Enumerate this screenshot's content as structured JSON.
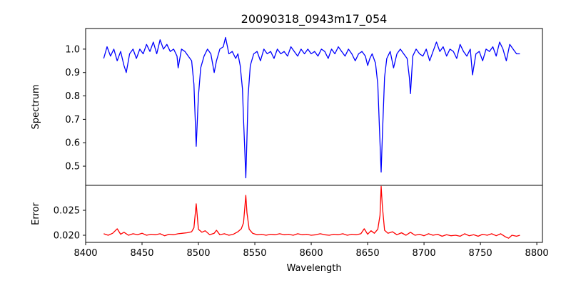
{
  "chart_data": [
    {
      "type": "line",
      "title": "20090318_0943m17_054",
      "xlabel": "",
      "ylabel": "Spectrum",
      "xlim": [
        8400,
        8805
      ],
      "ylim": [
        0.418,
        1.088
      ],
      "yticks": [
        0.5,
        0.6,
        0.7,
        0.8,
        0.9,
        1.0
      ],
      "ytick_labels": [
        "0.5",
        "0.6",
        "0.7",
        "0.8",
        "0.9",
        "1.0"
      ],
      "color": "#0000ff",
      "grid": false,
      "points": [
        [
          8416,
          0.96
        ],
        [
          8419,
          1.01
        ],
        [
          8422,
          0.97
        ],
        [
          8425,
          1.0
        ],
        [
          8428,
          0.95
        ],
        [
          8431,
          0.99
        ],
        [
          8434,
          0.93
        ],
        [
          8436,
          0.9
        ],
        [
          8439,
          0.98
        ],
        [
          8442,
          1.0
        ],
        [
          8445,
          0.96
        ],
        [
          8448,
          1.0
        ],
        [
          8451,
          0.98
        ],
        [
          8454,
          1.02
        ],
        [
          8457,
          0.99
        ],
        [
          8460,
          1.03
        ],
        [
          8463,
          0.98
        ],
        [
          8466,
          1.04
        ],
        [
          8469,
          1.0
        ],
        [
          8472,
          1.02
        ],
        [
          8475,
          0.99
        ],
        [
          8478,
          1.0
        ],
        [
          8481,
          0.97
        ],
        [
          8482,
          0.92
        ],
        [
          8485,
          1.0
        ],
        [
          8488,
          0.99
        ],
        [
          8491,
          0.97
        ],
        [
          8494,
          0.95
        ],
        [
          8496,
          0.85
        ],
        [
          8498,
          0.585
        ],
        [
          8500,
          0.8
        ],
        [
          8502,
          0.92
        ],
        [
          8505,
          0.97
        ],
        [
          8508,
          1.0
        ],
        [
          8511,
          0.98
        ],
        [
          8514,
          0.9
        ],
        [
          8516,
          0.95
        ],
        [
          8519,
          1.0
        ],
        [
          8522,
          1.01
        ],
        [
          8524,
          1.05
        ],
        [
          8527,
          0.98
        ],
        [
          8530,
          0.99
        ],
        [
          8533,
          0.96
        ],
        [
          8535,
          0.98
        ],
        [
          8537,
          0.93
        ],
        [
          8539,
          0.83
        ],
        [
          8540,
          0.7
        ],
        [
          8541,
          0.58
        ],
        [
          8542,
          0.45
        ],
        [
          8543,
          0.62
        ],
        [
          8544,
          0.8
        ],
        [
          8546,
          0.93
        ],
        [
          8549,
          0.98
        ],
        [
          8552,
          0.99
        ],
        [
          8555,
          0.95
        ],
        [
          8558,
          1.0
        ],
        [
          8561,
          0.98
        ],
        [
          8564,
          0.99
        ],
        [
          8567,
          0.96
        ],
        [
          8570,
          1.0
        ],
        [
          8573,
          0.98
        ],
        [
          8576,
          0.99
        ],
        [
          8579,
          0.97
        ],
        [
          8582,
          1.01
        ],
        [
          8585,
          0.99
        ],
        [
          8588,
          0.97
        ],
        [
          8591,
          1.0
        ],
        [
          8594,
          0.98
        ],
        [
          8597,
          1.0
        ],
        [
          8600,
          0.98
        ],
        [
          8603,
          0.99
        ],
        [
          8606,
          0.97
        ],
        [
          8609,
          1.0
        ],
        [
          8612,
          0.99
        ],
        [
          8615,
          0.96
        ],
        [
          8618,
          1.0
        ],
        [
          8621,
          0.98
        ],
        [
          8624,
          1.01
        ],
        [
          8627,
          0.99
        ],
        [
          8630,
          0.97
        ],
        [
          8633,
          1.0
        ],
        [
          8636,
          0.98
        ],
        [
          8639,
          0.95
        ],
        [
          8642,
          0.98
        ],
        [
          8645,
          0.99
        ],
        [
          8648,
          0.97
        ],
        [
          8650,
          0.93
        ],
        [
          8652,
          0.96
        ],
        [
          8654,
          0.98
        ],
        [
          8657,
          0.94
        ],
        [
          8659,
          0.85
        ],
        [
          8661,
          0.6
        ],
        [
          8662,
          0.475
        ],
        [
          8663,
          0.62
        ],
        [
          8665,
          0.88
        ],
        [
          8667,
          0.96
        ],
        [
          8670,
          0.99
        ],
        [
          8673,
          0.92
        ],
        [
          8676,
          0.98
        ],
        [
          8679,
          1.0
        ],
        [
          8682,
          0.98
        ],
        [
          8685,
          0.96
        ],
        [
          8687,
          0.88
        ],
        [
          8688,
          0.81
        ],
        [
          8690,
          0.97
        ],
        [
          8693,
          1.0
        ],
        [
          8696,
          0.98
        ],
        [
          8699,
          0.97
        ],
        [
          8702,
          1.0
        ],
        [
          8705,
          0.95
        ],
        [
          8708,
          0.99
        ],
        [
          8711,
          1.03
        ],
        [
          8714,
          0.99
        ],
        [
          8717,
          1.01
        ],
        [
          8720,
          0.97
        ],
        [
          8723,
          1.0
        ],
        [
          8726,
          0.99
        ],
        [
          8729,
          0.96
        ],
        [
          8732,
          1.02
        ],
        [
          8735,
          0.99
        ],
        [
          8738,
          0.97
        ],
        [
          8741,
          1.0
        ],
        [
          8743,
          0.89
        ],
        [
          8746,
          0.98
        ],
        [
          8749,
          0.99
        ],
        [
          8752,
          0.95
        ],
        [
          8755,
          1.0
        ],
        [
          8758,
          0.99
        ],
        [
          8761,
          1.01
        ],
        [
          8764,
          0.97
        ],
        [
          8767,
          1.03
        ],
        [
          8770,
          1.0
        ],
        [
          8773,
          0.95
        ],
        [
          8776,
          1.02
        ],
        [
          8779,
          1.0
        ],
        [
          8782,
          0.98
        ],
        [
          8785,
          0.98
        ]
      ]
    },
    {
      "type": "line",
      "title": "",
      "xlabel": "Wavelength",
      "ylabel": "Error",
      "xlim": [
        8400,
        8805
      ],
      "ylim": [
        0.01857,
        0.03
      ],
      "xticks": [
        8400,
        8450,
        8500,
        8550,
        8600,
        8650,
        8700,
        8750,
        8800
      ],
      "xtick_labels": [
        "8400",
        "8450",
        "8500",
        "8550",
        "8600",
        "8650",
        "8700",
        "8750",
        "8800"
      ],
      "yticks": [
        0.02,
        0.025
      ],
      "ytick_labels": [
        "0.020",
        "0.025"
      ],
      "color": "#ff0000",
      "grid": false,
      "points": [
        [
          8416,
          0.0203
        ],
        [
          8420,
          0.02
        ],
        [
          8424,
          0.0204
        ],
        [
          8428,
          0.0213
        ],
        [
          8431,
          0.0202
        ],
        [
          8434,
          0.0206
        ],
        [
          8438,
          0.02
        ],
        [
          8442,
          0.0203
        ],
        [
          8446,
          0.0201
        ],
        [
          8450,
          0.0204
        ],
        [
          8454,
          0.02
        ],
        [
          8458,
          0.0202
        ],
        [
          8462,
          0.0201
        ],
        [
          8466,
          0.0203
        ],
        [
          8470,
          0.0199
        ],
        [
          8474,
          0.0202
        ],
        [
          8478,
          0.0201
        ],
        [
          8482,
          0.0203
        ],
        [
          8486,
          0.0204
        ],
        [
          8490,
          0.0205
        ],
        [
          8494,
          0.0207
        ],
        [
          8496,
          0.0215
        ],
        [
          8498,
          0.0263
        ],
        [
          8500,
          0.0212
        ],
        [
          8503,
          0.0206
        ],
        [
          8506,
          0.0209
        ],
        [
          8510,
          0.0201
        ],
        [
          8514,
          0.0204
        ],
        [
          8516,
          0.021
        ],
        [
          8519,
          0.0201
        ],
        [
          8523,
          0.0203
        ],
        [
          8527,
          0.02
        ],
        [
          8531,
          0.0202
        ],
        [
          8535,
          0.0207
        ],
        [
          8538,
          0.0213
        ],
        [
          8540,
          0.0225
        ],
        [
          8542,
          0.028
        ],
        [
          8543,
          0.0245
        ],
        [
          8545,
          0.0212
        ],
        [
          8548,
          0.0204
        ],
        [
          8552,
          0.0201
        ],
        [
          8556,
          0.0202
        ],
        [
          8560,
          0.02
        ],
        [
          8564,
          0.0202
        ],
        [
          8568,
          0.0201
        ],
        [
          8572,
          0.0203
        ],
        [
          8576,
          0.0201
        ],
        [
          8580,
          0.0202
        ],
        [
          8584,
          0.02
        ],
        [
          8588,
          0.0203
        ],
        [
          8592,
          0.0201
        ],
        [
          8596,
          0.0202
        ],
        [
          8600,
          0.02
        ],
        [
          8604,
          0.0201
        ],
        [
          8608,
          0.0203
        ],
        [
          8612,
          0.0201
        ],
        [
          8616,
          0.02
        ],
        [
          8620,
          0.0202
        ],
        [
          8624,
          0.0201
        ],
        [
          8628,
          0.0203
        ],
        [
          8632,
          0.02
        ],
        [
          8636,
          0.0202
        ],
        [
          8640,
          0.0201
        ],
        [
          8644,
          0.0203
        ],
        [
          8647,
          0.0213
        ],
        [
          8650,
          0.0202
        ],
        [
          8653,
          0.0209
        ],
        [
          8656,
          0.0204
        ],
        [
          8659,
          0.0212
        ],
        [
          8661,
          0.024
        ],
        [
          8662,
          0.0298
        ],
        [
          8663,
          0.026
        ],
        [
          8665,
          0.021
        ],
        [
          8668,
          0.0204
        ],
        [
          8672,
          0.0207
        ],
        [
          8676,
          0.0201
        ],
        [
          8680,
          0.0205
        ],
        [
          8684,
          0.02
        ],
        [
          8688,
          0.0206
        ],
        [
          8692,
          0.02
        ],
        [
          8696,
          0.0202
        ],
        [
          8700,
          0.0199
        ],
        [
          8704,
          0.0203
        ],
        [
          8708,
          0.02
        ],
        [
          8712,
          0.0202
        ],
        [
          8716,
          0.0198
        ],
        [
          8720,
          0.0201
        ],
        [
          8724,
          0.0199
        ],
        [
          8728,
          0.02
        ],
        [
          8732,
          0.0198
        ],
        [
          8736,
          0.0203
        ],
        [
          8740,
          0.0199
        ],
        [
          8744,
          0.0201
        ],
        [
          8748,
          0.0198
        ],
        [
          8752,
          0.0202
        ],
        [
          8756,
          0.02
        ],
        [
          8760,
          0.0203
        ],
        [
          8764,
          0.0199
        ],
        [
          8768,
          0.0203
        ],
        [
          8772,
          0.0197
        ],
        [
          8775,
          0.0194
        ],
        [
          8778,
          0.02
        ],
        [
          8782,
          0.0198
        ],
        [
          8785,
          0.02
        ]
      ]
    }
  ]
}
